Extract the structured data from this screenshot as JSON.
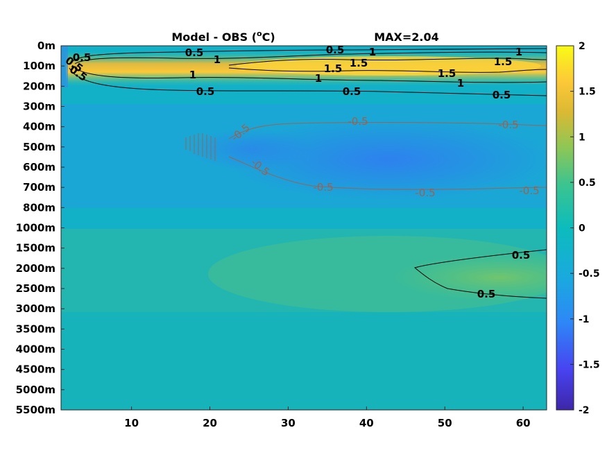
{
  "chart_data": {
    "type": "heatmap",
    "title": "Model - OBS (",
    "title_unit_sup": "o",
    "title_unit_tail": "C)",
    "max_label": "MAX=2.04",
    "xlabel": "",
    "ylabel": "",
    "x_ticks": [
      10,
      20,
      30,
      40,
      50,
      60
    ],
    "x_range": [
      1,
      63
    ],
    "y_tick_labels": [
      "0m",
      "100m",
      "200m",
      "300m",
      "400m",
      "500m",
      "600m",
      "700m",
      "800m",
      "1000m",
      "1500m",
      "2000m",
      "2500m",
      "3000m",
      "3500m",
      "4000m",
      "4500m",
      "5000m",
      "5500m"
    ],
    "colorbar": {
      "range": [
        -2,
        2
      ],
      "tick_values": [
        2,
        1.5,
        1,
        0.5,
        0,
        -0.5,
        -1,
        -1.5,
        -2
      ],
      "tick_labels": [
        "2",
        "1.5",
        "1",
        "0.5",
        "0",
        "-0.5",
        "-1",
        "-1.5",
        "-2"
      ],
      "colormap": "parula",
      "stops": [
        "#3e26a8",
        "#4743f0",
        "#2e87f7",
        "#1aa9df",
        "#0cbcbc",
        "#3cc48f",
        "#8dc755",
        "#dcb933",
        "#fcc838",
        "#f9fb15"
      ]
    },
    "contour_labels": {
      "positive": [
        "0.5",
        "1",
        "0.5",
        "1",
        "1.5",
        "1",
        "0.5",
        "1",
        "1.5",
        "1.5",
        "1",
        "1",
        "1.5",
        "0.5",
        "0.5",
        "0.5",
        "0.5",
        "0.5",
        "0.5",
        "0.5"
      ],
      "negative": [
        "-0.5",
        "-0.5",
        "-0.5",
        "-0.5",
        "-0.5",
        "-0.5",
        "-0.5"
      ]
    }
  }
}
